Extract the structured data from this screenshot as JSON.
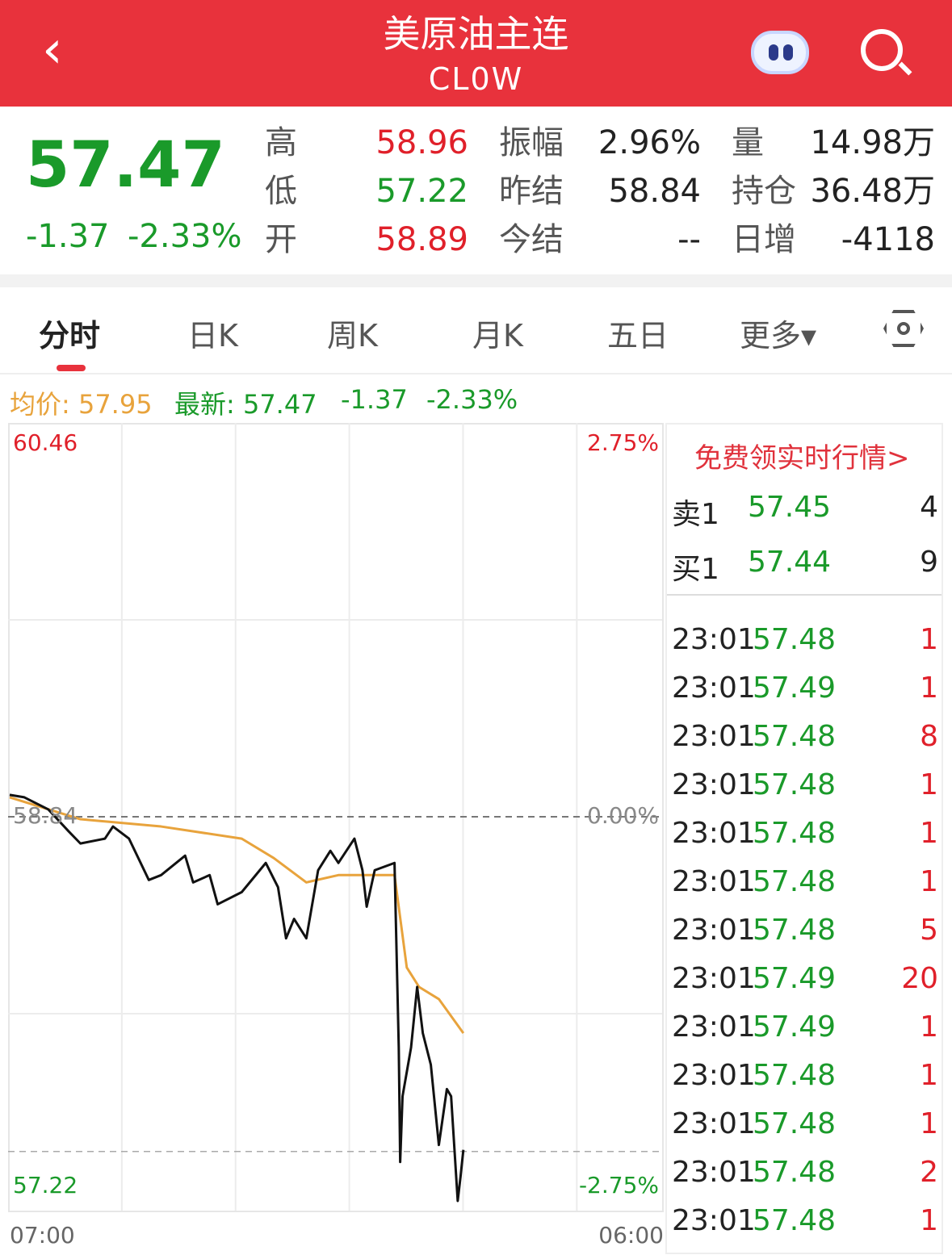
{
  "header": {
    "title": "美原油主连",
    "code": "CL0W"
  },
  "quote": {
    "price": "57.47",
    "change": "-1.37",
    "change_pct": "-2.33%",
    "fields": [
      {
        "label": "高",
        "value": "58.96",
        "color": "red"
      },
      {
        "label": "低",
        "value": "57.22",
        "color": "green"
      },
      {
        "label": "开",
        "value": "58.89",
        "color": "red"
      },
      {
        "label": "振幅",
        "value": "2.96%",
        "color": "dark"
      },
      {
        "label": "昨结",
        "value": "58.84",
        "color": "dark"
      },
      {
        "label": "今结",
        "value": "--",
        "color": "dark"
      },
      {
        "label": "量",
        "value": "14.98万",
        "color": "dark"
      },
      {
        "label": "持仓",
        "value": "36.48万",
        "color": "dark"
      },
      {
        "label": "日增",
        "value": "-4118",
        "color": "dark"
      }
    ]
  },
  "tabs": [
    "分时",
    "日K",
    "周K",
    "月K",
    "五日",
    "更多▾"
  ],
  "info": {
    "avg_label": "均价: 57.95",
    "latest_label": "最新: 57.47",
    "change": "-1.37",
    "pct": "-2.33%"
  },
  "colors": {
    "brand": "#e8323c",
    "up": "#e0202a",
    "down": "#1a9a2a",
    "avg": "#e8a33c"
  },
  "chart_data": {
    "type": "line",
    "y_labels": {
      "top": "60.46",
      "mid": "58.84",
      "bottom": "57.22"
    },
    "pct_labels": {
      "top": "2.75%",
      "mid": "0.00%",
      "bottom": "-2.75%"
    },
    "ylim": [
      57.22,
      60.46
    ],
    "x_labels": [
      "07:00",
      "06:00"
    ],
    "grid": true,
    "price": [
      [
        "07:00",
        58.93
      ],
      [
        "07:31",
        58.92
      ],
      [
        "08:22",
        58.87
      ],
      [
        "09:05",
        58.78
      ],
      [
        "09:30",
        58.73
      ],
      [
        "10:22",
        58.75
      ],
      [
        "10:39",
        58.8
      ],
      [
        "11:13",
        58.75
      ],
      [
        "11:55",
        58.58
      ],
      [
        "12:21",
        58.6
      ],
      [
        "13:12",
        58.68
      ],
      [
        "13:29",
        58.57
      ],
      [
        "14:04",
        58.6
      ],
      [
        "14:21",
        58.48
      ],
      [
        "15:12",
        58.53
      ],
      [
        "16:03",
        58.65
      ],
      [
        "16:29",
        58.55
      ],
      [
        "16:46",
        58.34
      ],
      [
        "17:03",
        58.42
      ],
      [
        "17:29",
        58.34
      ],
      [
        "17:54",
        58.62
      ],
      [
        "18:20",
        58.7
      ],
      [
        "18:37",
        58.65
      ],
      [
        "19:11",
        58.75
      ],
      [
        "19:28",
        58.62
      ],
      [
        "19:37",
        58.47
      ],
      [
        "19:54",
        58.62
      ],
      [
        "20:36",
        58.65
      ],
      [
        "20:45",
        57.89
      ],
      [
        "20:48",
        57.42
      ],
      [
        "20:53",
        57.69
      ],
      [
        "21:11",
        57.89
      ],
      [
        "21:24",
        58.14
      ],
      [
        "21:36",
        57.95
      ],
      [
        "21:53",
        57.82
      ],
      [
        "22:10",
        57.49
      ],
      [
        "22:27",
        57.72
      ],
      [
        "22:36",
        57.69
      ],
      [
        "22:50",
        57.26
      ],
      [
        "22:56",
        57.36
      ],
      [
        "23:02",
        57.47
      ]
    ],
    "avg": [
      [
        "07:00",
        58.92
      ],
      [
        "09:30",
        58.83
      ],
      [
        "12:21",
        58.8
      ],
      [
        "15:12",
        58.75
      ],
      [
        "16:20",
        58.67
      ],
      [
        "17:29",
        58.57
      ],
      [
        "18:37",
        58.6
      ],
      [
        "20:36",
        58.6
      ],
      [
        "21:02",
        58.22
      ],
      [
        "21:28",
        58.14
      ],
      [
        "22:10",
        58.09
      ],
      [
        "23:02",
        57.95
      ]
    ]
  },
  "panel": {
    "promo": "免费领实时行情>",
    "ask": {
      "label": "卖1",
      "price": "57.45",
      "vol": "4"
    },
    "bid": {
      "label": "买1",
      "price": "57.44",
      "vol": "9"
    },
    "ticks": [
      [
        "23:01",
        "57.48",
        "1"
      ],
      [
        "23:01",
        "57.49",
        "1"
      ],
      [
        "23:01",
        "57.48",
        "8"
      ],
      [
        "23:01",
        "57.48",
        "1"
      ],
      [
        "23:01",
        "57.48",
        "1"
      ],
      [
        "23:01",
        "57.48",
        "1"
      ],
      [
        "23:01",
        "57.48",
        "5"
      ],
      [
        "23:01",
        "57.49",
        "20"
      ],
      [
        "23:01",
        "57.49",
        "1"
      ],
      [
        "23:01",
        "57.48",
        "1"
      ],
      [
        "23:01",
        "57.48",
        "1"
      ],
      [
        "23:01",
        "57.48",
        "2"
      ],
      [
        "23:01",
        "57.48",
        "1"
      ]
    ]
  }
}
